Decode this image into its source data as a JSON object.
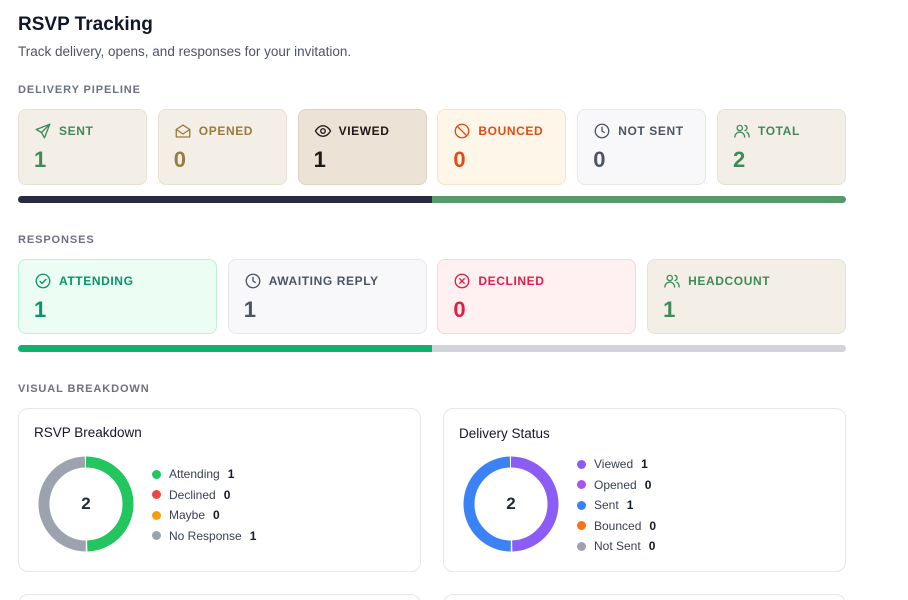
{
  "page": {
    "title": "RSVP Tracking",
    "subtitle": "Track delivery, opens, and responses for your invitation."
  },
  "delivery": {
    "label": "DELIVERY PIPELINE",
    "cards": [
      {
        "key": "sent",
        "label": "SENT",
        "value": "1",
        "icon": "send-icon",
        "bg": "#f4efe6",
        "fg": "#3f8a5a",
        "border": "#e7e0d3"
      },
      {
        "key": "opened",
        "label": "OPENED",
        "value": "0",
        "icon": "envelope-open-icon",
        "bg": "#f4efe6",
        "fg": "#9a7a3e",
        "border": "#e7e0d3"
      },
      {
        "key": "viewed",
        "label": "VIEWED",
        "value": "1",
        "icon": "eye-icon",
        "bg": "#ece2d6",
        "fg": "#1c1917",
        "border": "#ddd2c3"
      },
      {
        "key": "bounced",
        "label": "BOUNCED",
        "value": "0",
        "icon": "ban-icon",
        "bg": "#fff6ea",
        "fg": "#e04d12",
        "border": "#f7e3c9"
      },
      {
        "key": "not_sent",
        "label": "NOT SENT",
        "value": "0",
        "icon": "clock-icon",
        "bg": "#f8f8fa",
        "fg": "#4b5563",
        "border": "#e6e7eb"
      },
      {
        "key": "total",
        "label": "TOTAL",
        "value": "2",
        "icon": "users-icon",
        "bg": "#f4efe6",
        "fg": "#3f8a5a",
        "border": "#e7e0d3"
      }
    ],
    "progress": [
      {
        "name": "viewed",
        "fraction": 0.5,
        "color": "#2a2a45"
      },
      {
        "name": "sent",
        "fraction": 0.5,
        "color": "#559a68"
      }
    ]
  },
  "responses": {
    "label": "RESPONSES",
    "cards": [
      {
        "key": "attending",
        "label": "ATTENDING",
        "value": "1",
        "icon": "check-circle-icon",
        "bg": "#ecfdf3",
        "fg": "#059669",
        "border": "#bdf0d4"
      },
      {
        "key": "awaiting",
        "label": "AWAITING REPLY",
        "value": "1",
        "icon": "clock-icon",
        "bg": "#f8f8fa",
        "fg": "#4b5563",
        "border": "#e6e7eb"
      },
      {
        "key": "declined",
        "label": "DECLINED",
        "value": "0",
        "icon": "x-circle-icon",
        "bg": "#fff0f1",
        "fg": "#e11d48",
        "border": "#fbd3d8"
      },
      {
        "key": "headcount",
        "label": "HEADCOUNT",
        "value": "1",
        "icon": "users-icon",
        "bg": "#f4efe6",
        "fg": "#3f8a5a",
        "border": "#e7e0d3"
      }
    ],
    "progress": [
      {
        "name": "attending",
        "fraction": 0.5,
        "color": "#10b26c"
      },
      {
        "name": "remaining",
        "fraction": 0.5,
        "color": "#d1d5db"
      }
    ]
  },
  "visual": {
    "label": "VISUAL BREAKDOWN",
    "rsvp": {
      "title": "RSVP Breakdown",
      "total": "2",
      "items": [
        {
          "label": "Attending",
          "count": 1,
          "color": "#22c55e"
        },
        {
          "label": "Declined",
          "count": 0,
          "color": "#ef4444"
        },
        {
          "label": "Maybe",
          "count": 0,
          "color": "#f59e0b"
        },
        {
          "label": "No Response",
          "count": 1,
          "color": "#9ca3af"
        }
      ]
    },
    "delivery_status": {
      "title": "Delivery Status",
      "total": "2",
      "items": [
        {
          "label": "Viewed",
          "count": 1,
          "color": "#8b5cf6"
        },
        {
          "label": "Opened",
          "count": 0,
          "color": "#a855f7"
        },
        {
          "label": "Sent",
          "count": 1,
          "color": "#3b82f6"
        },
        {
          "label": "Bounced",
          "count": 0,
          "color": "#f97316"
        },
        {
          "label": "Not Sent",
          "count": 0,
          "color": "#9ca3af"
        }
      ]
    }
  }
}
